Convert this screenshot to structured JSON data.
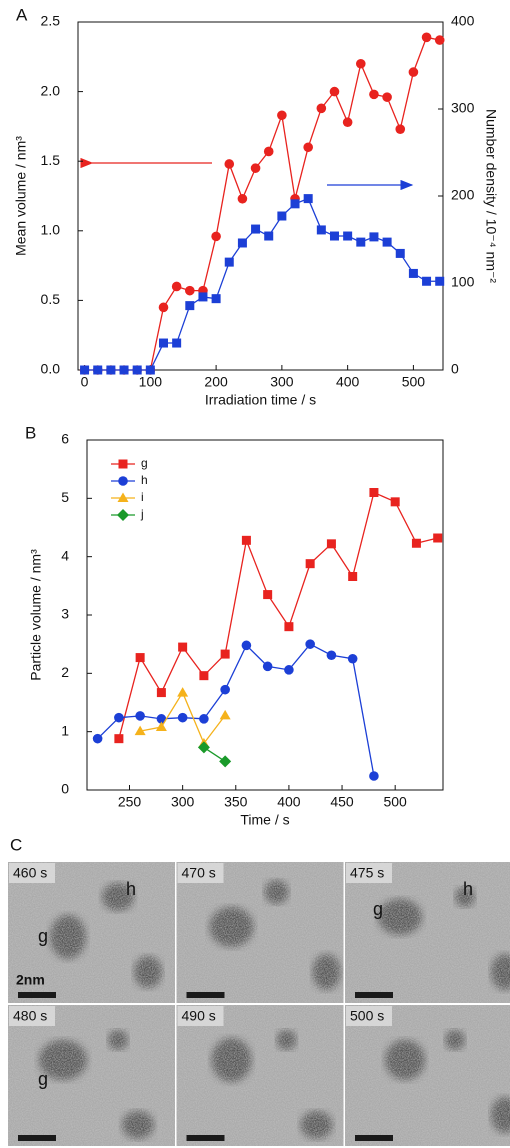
{
  "chart_data": [
    {
      "type": "line",
      "panel": "A",
      "xlabel": "Irradiation time / s",
      "ylabel": "Mean volume / nm³",
      "y2label": "Number density / 10⁻⁴ nm⁻²",
      "xlim": [
        -10,
        545
      ],
      "xticks": [
        0,
        100,
        200,
        300,
        400,
        500
      ],
      "ylim": [
        0,
        2.5
      ],
      "yticks": [
        {
          "value": 0,
          "label": "0.0"
        },
        0.5,
        {
          "value": 1,
          "label": "1.0"
        },
        1.5,
        {
          "value": 2,
          "label": "2.0"
        },
        2.5
      ],
      "y2lim": [
        0,
        400
      ],
      "y2ticks": [
        0,
        100,
        200,
        300,
        400
      ],
      "series": [
        {
          "color": "#e8231f",
          "marker": "circle",
          "x": [
            0,
            20,
            40,
            60,
            80,
            100,
            120,
            140,
            160,
            180,
            200,
            220,
            240,
            260,
            280,
            300,
            320,
            340,
            360,
            380,
            400,
            420,
            440,
            460,
            480,
            500,
            520,
            540
          ],
          "values": [
            0,
            0,
            0,
            0,
            0,
            0,
            0.45,
            0.6,
            0.57,
            0.57,
            0.96,
            1.48,
            1.23,
            1.45,
            1.57,
            1.83,
            1.23,
            1.6,
            1.88,
            2.0,
            1.78,
            2.2,
            1.98,
            1.96,
            1.73,
            2.14,
            2.39,
            2.37
          ]
        },
        {
          "color": "#1c3fd6",
          "marker": "square",
          "axis": "y2",
          "x": [
            0,
            20,
            40,
            60,
            80,
            100,
            120,
            140,
            160,
            180,
            200,
            220,
            240,
            260,
            280,
            300,
            320,
            340,
            360,
            380,
            400,
            420,
            440,
            460,
            480,
            500,
            520,
            540
          ],
          "values": [
            0,
            0,
            0,
            0,
            0,
            0,
            31,
            31,
            74,
            84,
            82,
            124,
            146,
            162,
            154,
            177,
            191,
            197,
            161,
            154,
            154,
            147,
            153,
            147,
            134,
            111,
            102,
            102
          ]
        }
      ]
    },
    {
      "type": "line",
      "panel": "B",
      "xlabel": "Time / s",
      "ylabel": "Particle volume / nm³",
      "xlim": [
        210,
        545
      ],
      "xticks": [
        250,
        300,
        350,
        400,
        450,
        500
      ],
      "ylim": [
        0,
        6
      ],
      "yticks": [
        0,
        1,
        2,
        3,
        4,
        5,
        6
      ],
      "legend": "upper left",
      "series": [
        {
          "name": "g",
          "color": "#e8231f",
          "marker": "square",
          "x": [
            240,
            260,
            280,
            300,
            320,
            340,
            360,
            380,
            400,
            420,
            440,
            460,
            480,
            500,
            520,
            540
          ],
          "values": [
            0.88,
            2.27,
            1.67,
            2.45,
            1.96,
            2.33,
            4.28,
            3.35,
            2.8,
            3.88,
            4.22,
            3.66,
            5.1,
            4.94,
            4.23,
            4.32
          ]
        },
        {
          "name": "h",
          "color": "#1c3fd6",
          "marker": "circle",
          "x": [
            220,
            240,
            260,
            280,
            300,
            320,
            340,
            360,
            380,
            400,
            420,
            440,
            460,
            480
          ],
          "values": [
            0.88,
            1.24,
            1.27,
            1.22,
            1.24,
            1.22,
            1.72,
            2.48,
            2.12,
            2.06,
            2.5,
            2.31,
            2.25,
            0.24
          ]
        },
        {
          "name": "i",
          "color": "#f5b21b",
          "marker": "triangle",
          "x": [
            260,
            280,
            300,
            320,
            340
          ],
          "values": [
            1.01,
            1.08,
            1.67,
            0.8,
            1.28
          ]
        },
        {
          "name": "j",
          "color": "#1a9a2a",
          "marker": "diamond",
          "x": [
            320,
            340
          ],
          "values": [
            0.73,
            0.49
          ]
        }
      ]
    }
  ],
  "panel_c": {
    "label": "C",
    "scale_bar": "2nm",
    "frames": [
      {
        "time": "460 s",
        "marks": [
          "g",
          "h"
        ]
      },
      {
        "time": "470 s"
      },
      {
        "time": "475 s",
        "marks": [
          "g",
          "h"
        ]
      },
      {
        "time": "480 s",
        "marks": [
          "g"
        ]
      },
      {
        "time": "490 s"
      },
      {
        "time": "500 s"
      }
    ]
  }
}
